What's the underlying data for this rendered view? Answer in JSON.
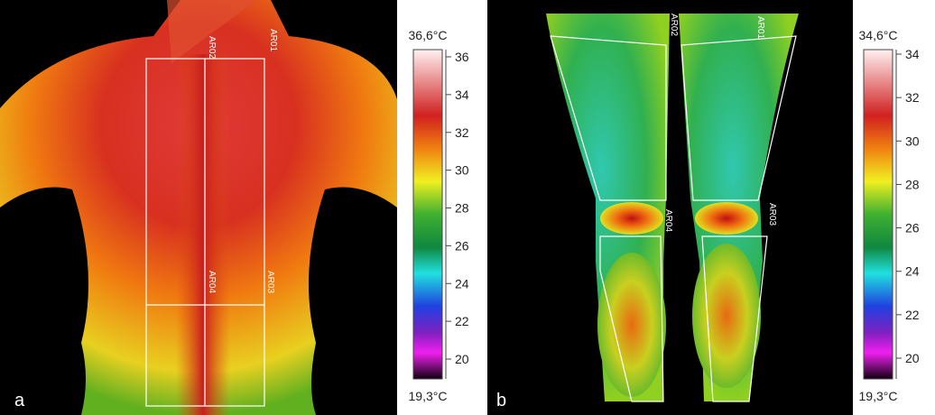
{
  "panels": [
    {
      "letter": "a",
      "regions": [
        "AR01",
        "AR02",
        "AR03",
        "AR04"
      ],
      "scale": {
        "max": "36,6°C",
        "min": "19,3°C",
        "ticks": [
          36,
          34,
          32,
          30,
          28,
          26,
          24,
          22,
          20
        ]
      }
    },
    {
      "letter": "b",
      "regions": [
        "AR01",
        "AR02",
        "AR03",
        "AR04"
      ],
      "scale": {
        "max": "34,6°C",
        "min": "19,3°C",
        "ticks": [
          34,
          32,
          30,
          28,
          26,
          24,
          22,
          20
        ]
      }
    }
  ]
}
